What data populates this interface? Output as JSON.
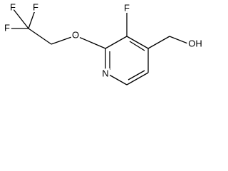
{
  "atoms": [
    {
      "label": "F"
    },
    {
      "label": "F"
    },
    {
      "label": "F"
    },
    {
      "label": "O"
    },
    {
      "label": "F"
    },
    {
      "label": "N"
    },
    {
      "label": "OH"
    }
  ]
}
